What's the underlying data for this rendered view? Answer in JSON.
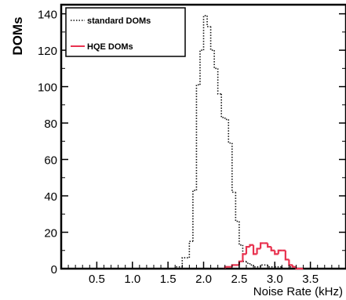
{
  "chart_data": {
    "type": "histogram-step",
    "ylabel": "DOMs",
    "xlabel": "Noise Rate (kHz)",
    "xlim": [
      0,
      4.0
    ],
    "ylim": [
      0,
      145
    ],
    "x_ticks": [
      0.5,
      1.0,
      1.5,
      2.0,
      2.5,
      3.0,
      3.5
    ],
    "x_tick_labels": [
      "0.5",
      "1.0",
      "1.5",
      "2.0",
      "2.5",
      "3.0",
      "3.5"
    ],
    "y_ticks": [
      0,
      20,
      40,
      60,
      80,
      100,
      120,
      140
    ],
    "y_tick_labels": [
      "0",
      "20",
      "40",
      "60",
      "80",
      "100",
      "120",
      "140"
    ],
    "grid": false,
    "legend_position": "top-left",
    "colors": {
      "standard": "#111111",
      "hqe": "#e8324f"
    },
    "series": [
      {
        "name": "standard DOMs",
        "style": "dotted",
        "bin_edges": [
          1.6,
          1.7,
          1.8,
          1.85,
          1.9,
          1.95,
          2.0,
          2.05,
          2.1,
          2.15,
          2.2,
          2.25,
          2.3,
          2.35,
          2.4,
          2.45,
          2.5,
          2.55,
          2.6,
          2.65,
          2.7,
          2.8,
          2.9,
          3.0,
          3.1,
          3.2,
          3.3
        ],
        "counts": [
          1,
          6,
          15,
          43,
          101,
          120,
          139,
          133,
          120,
          110,
          96,
          83,
          82,
          69,
          42,
          26,
          13,
          4,
          3,
          2,
          1,
          2,
          1,
          1,
          0,
          1
        ]
      },
      {
        "name": "HQE DOMs",
        "style": "solid",
        "bin_edges": [
          2.3,
          2.4,
          2.5,
          2.55,
          2.6,
          2.65,
          2.7,
          2.75,
          2.8,
          2.85,
          2.9,
          2.95,
          3.0,
          3.05,
          3.1,
          3.15,
          3.2,
          3.25,
          3.3,
          3.4
        ],
        "counts": [
          1,
          2,
          4,
          8,
          12,
          13,
          8,
          11,
          14,
          14,
          12,
          10,
          8,
          10,
          10,
          5,
          2,
          1,
          0
        ]
      }
    ]
  }
}
